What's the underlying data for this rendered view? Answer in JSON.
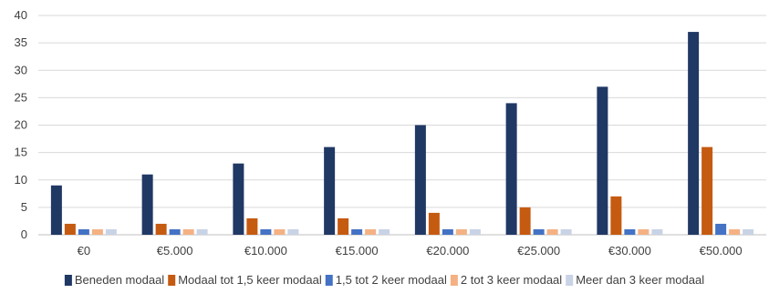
{
  "chart_data": {
    "type": "bar",
    "categories": [
      "€0",
      "€5.000",
      "€10.000",
      "€15.000",
      "€20.000",
      "€25.000",
      "€30.000",
      "€50.000"
    ],
    "ylim": [
      0,
      40
    ],
    "yticks": [
      0,
      5,
      10,
      15,
      20,
      25,
      30,
      35,
      40
    ],
    "grid": true,
    "legend_position": "bottom",
    "series": [
      {
        "name": "Beneden modaal",
        "color": "#203864",
        "values": [
          9,
          11,
          13,
          16,
          20,
          24,
          27,
          37
        ]
      },
      {
        "name": "Modaal tot 1,5 keer modaal",
        "color": "#C55A11",
        "values": [
          2,
          2,
          3,
          3,
          4,
          5,
          7,
          16
        ]
      },
      {
        "name": "1,5 tot 2 keer modaal",
        "color": "#4472C4",
        "values": [
          1,
          1,
          1,
          1,
          1,
          1,
          1,
          2
        ]
      },
      {
        "name": "2 tot 3 keer modaal",
        "color": "#F4B183",
        "values": [
          1,
          1,
          1,
          1,
          1,
          1,
          1,
          1
        ]
      },
      {
        "name": "Meer dan 3 keer modaal",
        "color": "#C9D3E6",
        "values": [
          1,
          1,
          1,
          1,
          1,
          1,
          1,
          1
        ]
      }
    ]
  }
}
